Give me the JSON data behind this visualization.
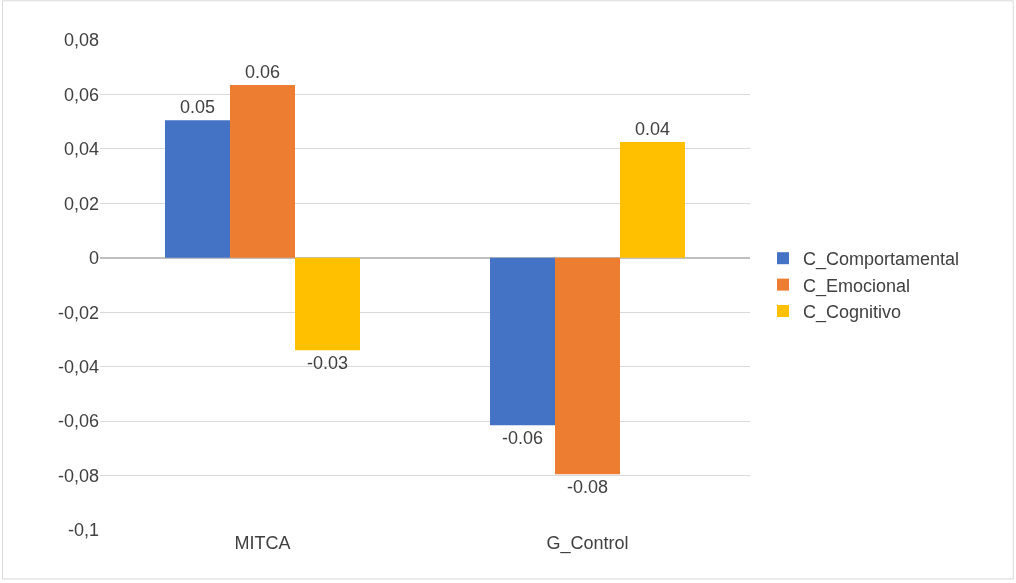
{
  "chart_data": {
    "type": "bar",
    "categories": [
      "MITCA",
      "G_Control"
    ],
    "series": [
      {
        "name": "C_Comportamental",
        "color": "#4472c4",
        "values": [
          0.0505,
          -0.0615
        ],
        "value_labels": [
          "0.05",
          "-0.06"
        ]
      },
      {
        "name": "C_Emocional",
        "color": "#ed7d31",
        "values": [
          0.0635,
          -0.0795
        ],
        "value_labels": [
          "0.06",
          "-0.08"
        ]
      },
      {
        "name": "C_Cognitivo",
        "color": "#ffc000",
        "values": [
          -0.034,
          0.0425
        ],
        "value_labels": [
          "-0.03",
          "0.04"
        ]
      }
    ],
    "ylim": [
      -0.1,
      0.08
    ],
    "yticks": [
      {
        "value": -0.1,
        "label": "-0,1"
      },
      {
        "value": -0.08,
        "label": "-0,08"
      },
      {
        "value": -0.06,
        "label": "-0,06"
      },
      {
        "value": -0.04,
        "label": "-0,04"
      },
      {
        "value": -0.02,
        "label": "-0,02"
      },
      {
        "value": 0,
        "label": "0"
      },
      {
        "value": 0.02,
        "label": "0,02"
      },
      {
        "value": 0.04,
        "label": "0,04"
      },
      {
        "value": 0.06,
        "label": "0,06"
      },
      {
        "value": 0.08,
        "label": "0,08"
      }
    ],
    "grid": "y",
    "legend": "right"
  }
}
